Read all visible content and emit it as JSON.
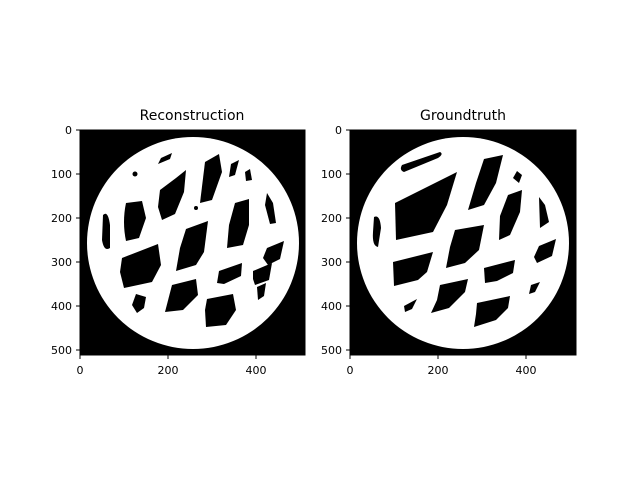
{
  "panels": [
    {
      "title": "Reconstruction",
      "xticks": [
        "0",
        "200",
        "400"
      ],
      "yticks": [
        "0",
        "100",
        "200",
        "300",
        "400",
        "500"
      ]
    },
    {
      "title": "Groundtruth",
      "xticks": [
        "0",
        "200",
        "400"
      ],
      "yticks": [
        "0",
        "100",
        "200",
        "300",
        "400",
        "500"
      ]
    }
  ],
  "colors": {
    "background": "#000000",
    "foreground": "#ffffff"
  }
}
